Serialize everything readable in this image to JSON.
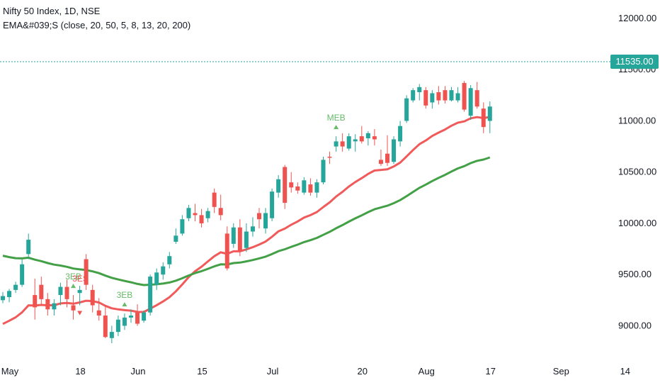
{
  "legend": {
    "symbol_line": "Nifty 50 Index, 1D, NSE",
    "indicator_line": "EMA&#039;S (close, 20, 50, 5, 8, 13, 20, 200)"
  },
  "last_price": "11535.00",
  "colors": {
    "up": "#26a69a",
    "down": "#ef5350",
    "ema_fast": "#f05a5a",
    "ema_slow": "#43a047",
    "signal_text": "#66bb6a",
    "signal_sell": "#ef5350",
    "axis_text": "#131722",
    "price_line": "#26a69a"
  },
  "chart_data": {
    "type": "candlestick",
    "ylim": [
      8650,
      12180
    ],
    "y_ticks": [
      "12000.00",
      "11500.00",
      "11000.00",
      "10500.00",
      "10000.00",
      "9500.00",
      "9000.00"
    ],
    "y_tick_values": [
      12000,
      11500,
      11000,
      10500,
      10000,
      9500,
      9000
    ],
    "x_tick_labels": [
      "May",
      "18",
      "Jun",
      "15",
      "Jul",
      "20",
      "Aug",
      "17",
      "Sep",
      "14"
    ],
    "x_tick_index": [
      0,
      11,
      20,
      30,
      41,
      55,
      65,
      75,
      86,
      96
    ],
    "candles": [
      [
        9250,
        9330,
        9220,
        9290
      ],
      [
        9280,
        9360,
        9230,
        9340
      ],
      [
        9350,
        9430,
        9320,
        9400
      ],
      [
        9400,
        9650,
        9380,
        9600
      ],
      [
        9700,
        9900,
        9650,
        9840
      ],
      [
        9300,
        9460,
        9060,
        9180
      ],
      [
        9400,
        9480,
        9200,
        9260
      ],
      [
        9260,
        9320,
        9100,
        9160
      ],
      [
        9160,
        9260,
        9100,
        9220
      ],
      [
        9300,
        9420,
        9200,
        9380
      ],
      [
        9380,
        9450,
        9180,
        9260
      ],
      [
        9200,
        9300,
        9060,
        9150
      ],
      [
        9320,
        9390,
        9200,
        9350
      ],
      [
        9650,
        9700,
        9350,
        9400
      ],
      [
        9350,
        9400,
        9130,
        9200
      ],
      [
        9150,
        9270,
        9050,
        9100
      ],
      [
        9100,
        9200,
        8880,
        8890
      ],
      [
        8880,
        9000,
        8830,
        8940
      ],
      [
        8940,
        9100,
        8900,
        9060
      ],
      [
        9000,
        9120,
        8960,
        9080
      ],
      [
        9080,
        9160,
        9030,
        9100
      ],
      [
        9130,
        9210,
        9000,
        9020
      ],
      [
        9050,
        9150,
        9030,
        9130
      ],
      [
        9130,
        9500,
        9100,
        9480
      ],
      [
        9400,
        9560,
        9350,
        9520
      ],
      [
        9500,
        9620,
        9450,
        9580
      ],
      [
        9600,
        9720,
        9560,
        9680
      ],
      [
        9820,
        9950,
        9800,
        9880
      ],
      [
        9900,
        10080,
        9880,
        10040
      ],
      [
        10050,
        10180,
        10020,
        10150
      ],
      [
        10100,
        10190,
        10020,
        10080
      ],
      [
        10080,
        10140,
        9960,
        10000
      ],
      [
        10050,
        10150,
        10010,
        10120
      ],
      [
        10300,
        10340,
        10100,
        10160
      ],
      [
        10150,
        10280,
        10030,
        10080
      ],
      [
        9900,
        9970,
        9540,
        9560
      ],
      [
        9800,
        10000,
        9760,
        9960
      ],
      [
        9960,
        10040,
        9680,
        9730
      ],
      [
        9760,
        10000,
        9720,
        9920
      ],
      [
        9920,
        10060,
        9870,
        9970
      ],
      [
        10100,
        10150,
        9950,
        10040
      ],
      [
        9950,
        10150,
        9900,
        10100
      ],
      [
        10050,
        10340,
        10020,
        10310
      ],
      [
        10300,
        10470,
        10250,
        10430
      ],
      [
        10550,
        10570,
        10140,
        10200
      ],
      [
        10400,
        10500,
        10300,
        10350
      ],
      [
        10360,
        10400,
        10290,
        10320
      ],
      [
        10300,
        10450,
        10280,
        10420
      ],
      [
        10380,
        10440,
        10270,
        10300
      ],
      [
        10300,
        10430,
        10250,
        10400
      ],
      [
        10400,
        10650,
        10380,
        10620
      ],
      [
        10650,
        10700,
        10580,
        10640
      ],
      [
        10750,
        10850,
        10700,
        10800
      ],
      [
        10800,
        10880,
        10700,
        10750
      ],
      [
        10730,
        10880,
        10710,
        10850
      ],
      [
        10800,
        10870,
        10700,
        10820
      ],
      [
        10850,
        10950,
        10780,
        10800
      ],
      [
        10830,
        10900,
        10760,
        10880
      ],
      [
        10850,
        10920,
        10760,
        10820
      ],
      [
        10620,
        10720,
        10560,
        10580
      ],
      [
        10680,
        10860,
        10560,
        10590
      ],
      [
        10600,
        10850,
        10580,
        10820
      ],
      [
        10800,
        11000,
        10750,
        10950
      ],
      [
        11000,
        11250,
        10980,
        11220
      ],
      [
        11200,
        11320,
        11180,
        11300
      ],
      [
        11280,
        11360,
        11200,
        11330
      ],
      [
        11300,
        11330,
        11120,
        11150
      ],
      [
        11180,
        11300,
        11120,
        11270
      ],
      [
        11280,
        11340,
        11160,
        11200
      ],
      [
        11300,
        11340,
        11170,
        11200
      ],
      [
        11200,
        11330,
        11190,
        11300
      ],
      [
        11200,
        11330,
        11180,
        11270
      ],
      [
        11370,
        11390,
        11090,
        11110
      ],
      [
        11050,
        11350,
        11010,
        11320
      ],
      [
        11300,
        11380,
        11120,
        11140
      ],
      [
        11120,
        11180,
        10880,
        10940
      ],
      [
        11000,
        11190,
        10880,
        11140
      ]
    ]
  }
}
